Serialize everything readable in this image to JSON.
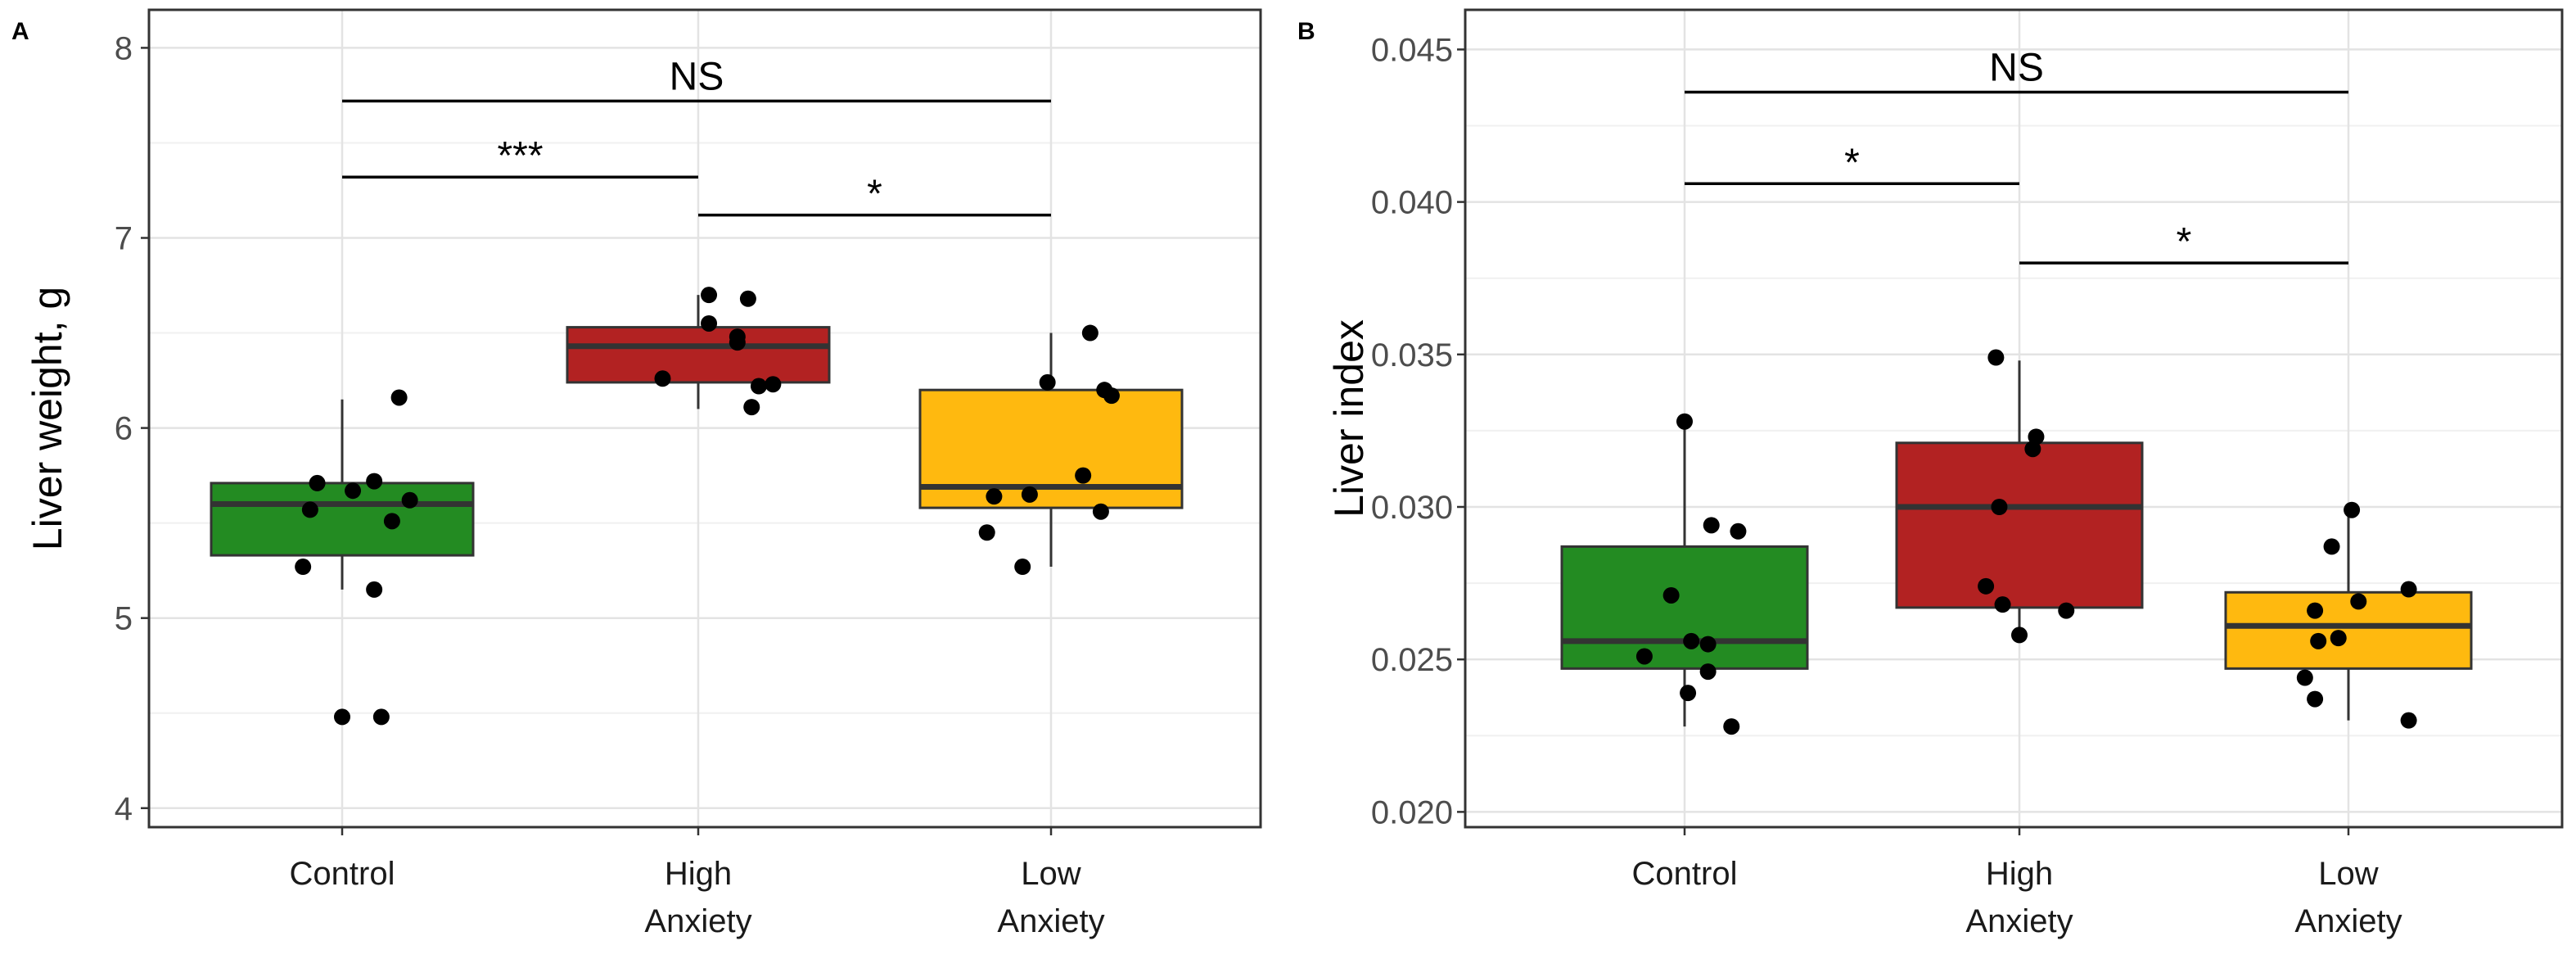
{
  "chart_data": [
    {
      "type": "boxplot",
      "panel_label": "A",
      "xlabel": "",
      "ylabel": "Liver weight, g",
      "ylim": [
        3.9,
        8.2
      ],
      "yticks": [
        "4",
        "5",
        "6",
        "7",
        "8"
      ],
      "ytick_values": [
        4,
        5,
        6,
        7,
        8
      ],
      "categories": [
        [
          "Control"
        ],
        [
          "High",
          "Anxiety"
        ],
        [
          "Low",
          "Anxiety"
        ]
      ],
      "colors": [
        "#238b22",
        "#b22222",
        "#ffb90f"
      ],
      "boxes": [
        {
          "q1": 5.33,
          "median": 5.6,
          "q3": 5.71,
          "whisker_low": 5.15,
          "whisker_high": 6.15
        },
        {
          "q1": 6.24,
          "median": 6.43,
          "q3": 6.53,
          "whisker_low": 6.1,
          "whisker_high": 6.7
        },
        {
          "q1": 5.58,
          "median": 5.69,
          "q3": 6.2,
          "whisker_low": 5.27,
          "whisker_high": 6.5
        }
      ],
      "points": [
        [
          [
            -0.07,
            5.71
          ],
          [
            0.09,
            5.72
          ],
          [
            -0.09,
            5.57
          ],
          [
            0.03,
            5.67
          ],
          [
            0.19,
            5.62
          ],
          [
            0.14,
            5.51
          ],
          [
            -0.11,
            5.27
          ],
          [
            0.09,
            5.15
          ],
          [
            0.16,
            6.16
          ],
          [
            0.0,
            4.48
          ],
          [
            0.11,
            4.48
          ]
        ],
        [
          [
            0.03,
            6.7
          ],
          [
            0.14,
            6.68
          ],
          [
            0.03,
            6.55
          ],
          [
            0.11,
            6.48
          ],
          [
            0.11,
            6.45
          ],
          [
            -0.1,
            6.26
          ],
          [
            0.21,
            6.23
          ],
          [
            0.17,
            6.22
          ],
          [
            0.15,
            6.11
          ]
        ],
        [
          [
            0.11,
            6.5
          ],
          [
            -0.01,
            6.24
          ],
          [
            0.15,
            6.2
          ],
          [
            0.17,
            6.17
          ],
          [
            0.09,
            5.75
          ],
          [
            -0.16,
            5.64
          ],
          [
            -0.06,
            5.65
          ],
          [
            0.14,
            5.56
          ],
          [
            -0.18,
            5.45
          ],
          [
            -0.08,
            5.27
          ]
        ]
      ],
      "significance": [
        {
          "from": 0,
          "to": 2,
          "y": 7.72,
          "label": "NS"
        },
        {
          "from": 0,
          "to": 1,
          "y": 7.32,
          "label": "***"
        },
        {
          "from": 1,
          "to": 2,
          "y": 7.12,
          "label": "*"
        }
      ]
    },
    {
      "type": "boxplot",
      "panel_label": "B",
      "xlabel": "",
      "ylabel": "Liver index",
      "ylim": [
        0.0195,
        0.0463
      ],
      "yticks": [
        "0.020",
        "0.025",
        "0.030",
        "0.035",
        "0.040",
        "0.045"
      ],
      "ytick_values": [
        0.02,
        0.025,
        0.03,
        0.035,
        0.04,
        0.045
      ],
      "categories": [
        [
          "Control"
        ],
        [
          "High",
          "Anxiety"
        ],
        [
          "Low",
          "Anxiety"
        ]
      ],
      "colors": [
        "#238b22",
        "#b22222",
        "#ffb90f"
      ],
      "boxes": [
        {
          "q1": 0.0247,
          "median": 0.0256,
          "q3": 0.0287,
          "whisker_low": 0.0228,
          "whisker_high": 0.0328
        },
        {
          "q1": 0.0267,
          "median": 0.03,
          "q3": 0.0321,
          "whisker_low": 0.0258,
          "whisker_high": 0.0348
        },
        {
          "q1": 0.0247,
          "median": 0.0261,
          "q3": 0.0272,
          "whisker_low": 0.023,
          "whisker_high": 0.0298
        }
      ],
      "points": [
        [
          [
            0.0,
            0.0328
          ],
          [
            0.08,
            0.0294
          ],
          [
            0.16,
            0.0292
          ],
          [
            -0.04,
            0.0271
          ],
          [
            0.02,
            0.0256
          ],
          [
            0.07,
            0.0255
          ],
          [
            -0.12,
            0.0251
          ],
          [
            0.07,
            0.0246
          ],
          [
            0.01,
            0.0239
          ],
          [
            0.14,
            0.0228
          ]
        ],
        [
          [
            -0.07,
            0.0349
          ],
          [
            0.05,
            0.0323
          ],
          [
            0.04,
            0.0319
          ],
          [
            -0.06,
            0.03
          ],
          [
            -0.1,
            0.0274
          ],
          [
            -0.05,
            0.0268
          ],
          [
            0.14,
            0.0266
          ],
          [
            0.0,
            0.0258
          ]
        ],
        [
          [
            0.01,
            0.0299
          ],
          [
            -0.05,
            0.0287
          ],
          [
            0.18,
            0.0273
          ],
          [
            0.03,
            0.0269
          ],
          [
            -0.1,
            0.0266
          ],
          [
            -0.03,
            0.0257
          ],
          [
            -0.09,
            0.0256
          ],
          [
            -0.13,
            0.0244
          ],
          [
            -0.1,
            0.0237
          ],
          [
            0.18,
            0.023
          ]
        ]
      ],
      "significance": [
        {
          "from": 0,
          "to": 2,
          "y": 0.0436,
          "label": "NS"
        },
        {
          "from": 0,
          "to": 1,
          "y": 0.0406,
          "label": "*"
        },
        {
          "from": 1,
          "to": 2,
          "y": 0.038,
          "label": "*"
        }
      ]
    }
  ]
}
